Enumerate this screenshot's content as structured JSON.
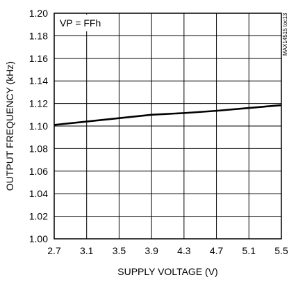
{
  "chart_data": {
    "type": "line",
    "title": "",
    "xlabel": "SUPPLY VOLTAGE (V)",
    "ylabel": "OUTPUT FREQUENCY (kHz)",
    "xlim": [
      2.7,
      5.5
    ],
    "ylim": [
      1.0,
      1.2
    ],
    "x_ticks": [
      "2.7",
      "3.1",
      "3.5",
      "3.9",
      "4.3",
      "4.7",
      "5.1",
      "5.5"
    ],
    "y_ticks": [
      "1.00",
      "1.02",
      "1.04",
      "1.06",
      "1.08",
      "1.10",
      "1.12",
      "1.14",
      "1.16",
      "1.18",
      "1.20"
    ],
    "grid": true,
    "annotation": "VP = FFh",
    "figure_id": "MAX14515 toc13",
    "series": [
      {
        "x": [
          2.7,
          3.1,
          3.5,
          3.9,
          4.3,
          4.7,
          5.1,
          5.5
        ],
        "y": [
          1.101,
          1.104,
          1.107,
          1.11,
          1.1115,
          1.1135,
          1.116,
          1.1185
        ]
      }
    ]
  }
}
